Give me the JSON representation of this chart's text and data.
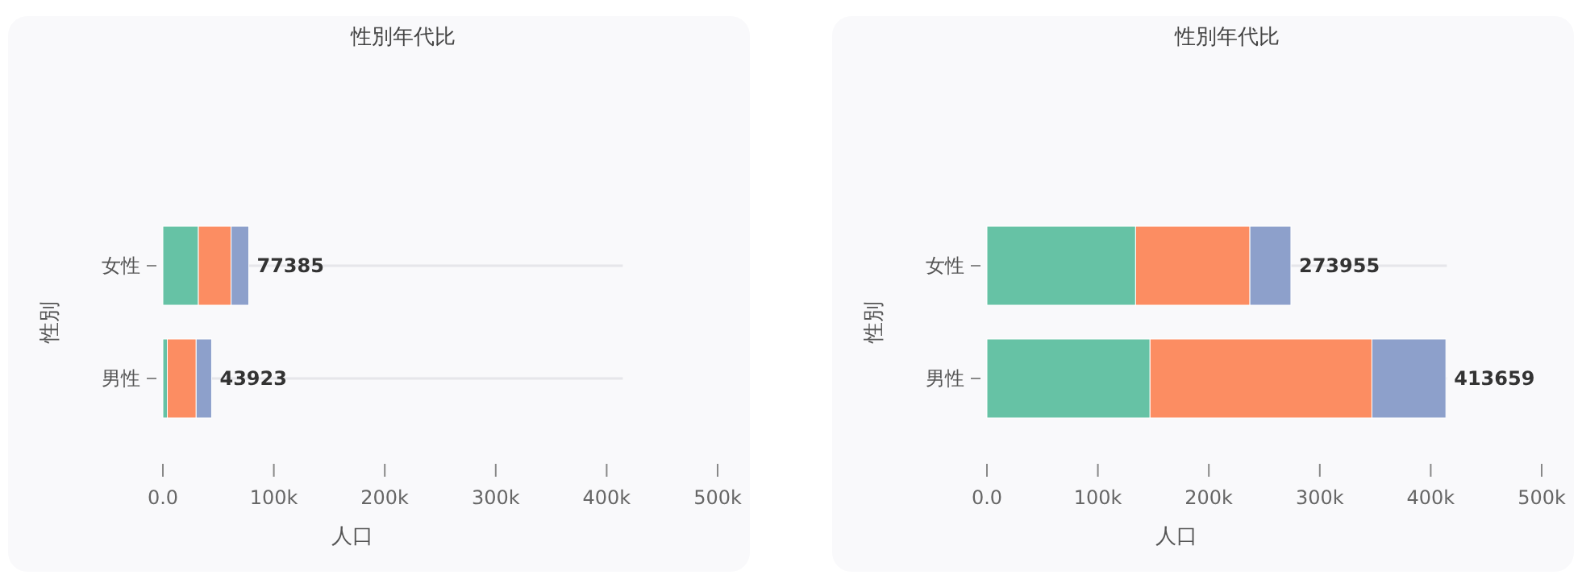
{
  "chart_data": [
    {
      "type": "bar",
      "orientation": "horizontal",
      "stacked": true,
      "title": "性別年代比",
      "xlabel": "人口",
      "ylabel": "性別",
      "categories": [
        "女性",
        "男性"
      ],
      "series": [
        {
          "color": "#66c2a5",
          "values": [
            32000,
            4000
          ]
        },
        {
          "color": "#fc8d62",
          "values": [
            29500,
            26000
          ]
        },
        {
          "color": "#8da0cb",
          "values": [
            15885,
            13923
          ]
        }
      ],
      "totals": [
        "77385",
        "43923"
      ],
      "xlim": [
        0,
        500000
      ],
      "xticks": [
        {
          "value": 0,
          "label": "0.0"
        },
        {
          "value": 100000,
          "label": "100k"
        },
        {
          "value": 200000,
          "label": "200k"
        },
        {
          "value": 300000,
          "label": "300k"
        },
        {
          "value": 400000,
          "label": "400k"
        },
        {
          "value": 500000,
          "label": "500k"
        }
      ],
      "grid": "y"
    },
    {
      "type": "bar",
      "orientation": "horizontal",
      "stacked": true,
      "title": "性別年代比",
      "xlabel": "人口",
      "ylabel": "性別",
      "categories": [
        "女性",
        "男性"
      ],
      "series": [
        {
          "color": "#66c2a5",
          "values": [
            134000,
            147000
          ]
        },
        {
          "color": "#fc8d62",
          "values": [
            103000,
            200000
          ]
        },
        {
          "color": "#8da0cb",
          "values": [
            36955,
            66659
          ]
        }
      ],
      "totals": [
        "273955",
        "413659"
      ],
      "xlim": [
        0,
        500000
      ],
      "xticks": [
        {
          "value": 0,
          "label": "0.0"
        },
        {
          "value": 100000,
          "label": "100k"
        },
        {
          "value": 200000,
          "label": "200k"
        },
        {
          "value": 300000,
          "label": "300k"
        },
        {
          "value": 400000,
          "label": "400k"
        },
        {
          "value": 500000,
          "label": "500k"
        }
      ],
      "grid": "y"
    }
  ]
}
